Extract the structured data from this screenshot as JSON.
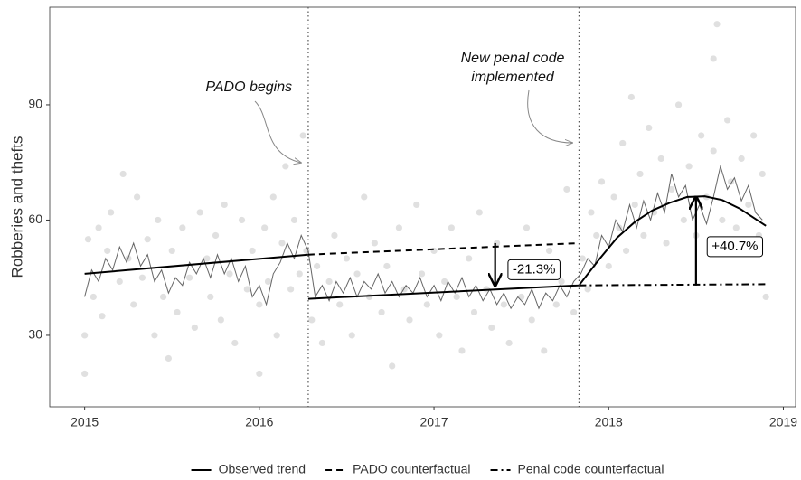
{
  "chart_data": {
    "type": "line",
    "ylabel": "Robberies and thefts",
    "xlim": [
      2014.8,
      2019.07
    ],
    "ylim": [
      11.4,
      115.4
    ],
    "xticks": [
      2015,
      2016,
      2017,
      2018,
      2019
    ],
    "yticks": [
      30,
      60,
      90
    ],
    "grid": false,
    "legend": "bottom",
    "vlines": [
      2016.28,
      2017.83
    ],
    "points": {
      "color": "#999999",
      "x": [
        2015.0,
        2015.0,
        2015.02,
        2015.05,
        2015.08,
        2015.1,
        2015.13,
        2015.15,
        2015.2,
        2015.22,
        2015.25,
        2015.28,
        2015.3,
        2015.33,
        2015.36,
        2015.4,
        2015.42,
        2015.45,
        2015.48,
        2015.5,
        2015.53,
        2015.56,
        2015.6,
        2015.63,
        2015.66,
        2015.7,
        2015.72,
        2015.75,
        2015.78,
        2015.8,
        2015.83,
        2015.86,
        2015.9,
        2015.93,
        2015.96,
        2016.0,
        2016.0,
        2016.03,
        2016.05,
        2016.08,
        2016.1,
        2016.13,
        2016.15,
        2016.18,
        2016.2,
        2016.23,
        2016.25,
        2016.27,
        2016.3,
        2016.33,
        2016.36,
        2016.4,
        2016.43,
        2016.46,
        2016.5,
        2016.53,
        2016.56,
        2016.6,
        2016.63,
        2016.66,
        2016.7,
        2016.73,
        2016.76,
        2016.8,
        2016.83,
        2016.86,
        2016.9,
        2016.93,
        2016.96,
        2017.0,
        2017.03,
        2017.06,
        2017.1,
        2017.13,
        2017.16,
        2017.2,
        2017.23,
        2017.26,
        2017.3,
        2017.33,
        2017.36,
        2017.4,
        2017.43,
        2017.46,
        2017.5,
        2017.53,
        2017.56,
        2017.6,
        2017.63,
        2017.66,
        2017.7,
        2017.73,
        2017.76,
        2017.8,
        2017.85,
        2017.88,
        2017.9,
        2017.93,
        2017.96,
        2018.0,
        2018.03,
        2018.06,
        2018.08,
        2018.1,
        2018.13,
        2018.15,
        2018.18,
        2018.2,
        2018.23,
        2018.26,
        2018.3,
        2018.33,
        2018.36,
        2018.4,
        2018.43,
        2018.46,
        2018.5,
        2018.53,
        2018.56,
        2018.6,
        2018.6,
        2018.62,
        2018.65,
        2018.68,
        2018.7,
        2018.73,
        2018.76,
        2018.8,
        2018.83,
        2018.86,
        2018.88,
        2018.9
      ],
      "values": [
        20,
        30,
        55,
        40,
        58,
        35,
        52,
        62,
        44,
        72,
        50,
        38,
        66,
        45,
        55,
        30,
        60,
        40,
        24,
        52,
        36,
        58,
        45,
        32,
        62,
        50,
        40,
        56,
        34,
        64,
        46,
        28,
        60,
        42,
        52,
        20,
        38,
        58,
        44,
        66,
        30,
        54,
        74,
        42,
        60,
        46,
        82,
        52,
        34,
        48,
        28,
        44,
        56,
        38,
        50,
        30,
        46,
        66,
        40,
        54,
        36,
        48,
        22,
        58,
        42,
        34,
        64,
        46,
        38,
        52,
        30,
        44,
        58,
        40,
        26,
        50,
        36,
        62,
        42,
        32,
        54,
        38,
        28,
        48,
        40,
        58,
        34,
        46,
        26,
        52,
        38,
        44,
        68,
        36,
        50,
        42,
        62,
        56,
        70,
        48,
        66,
        58,
        80,
        52,
        92,
        64,
        72,
        56,
        84,
        62,
        76,
        54,
        68,
        90,
        60,
        74,
        56,
        82,
        66,
        102,
        78,
        111,
        60,
        86,
        70,
        58,
        76,
        64,
        82,
        56,
        72,
        40
      ]
    },
    "smoothed": {
      "color": "#666666",
      "x": [
        2015.0,
        2015.04,
        2015.08,
        2015.12,
        2015.16,
        2015.2,
        2015.24,
        2015.28,
        2015.32,
        2015.36,
        2015.4,
        2015.44,
        2015.48,
        2015.52,
        2015.56,
        2015.6,
        2015.64,
        2015.68,
        2015.72,
        2015.76,
        2015.8,
        2015.84,
        2015.88,
        2015.92,
        2015.96,
        2016.0,
        2016.04,
        2016.08,
        2016.12,
        2016.16,
        2016.2,
        2016.24,
        2016.28,
        2016.32,
        2016.36,
        2016.4,
        2016.44,
        2016.48,
        2016.52,
        2016.56,
        2016.6,
        2016.64,
        2016.68,
        2016.72,
        2016.76,
        2016.8,
        2016.84,
        2016.88,
        2016.92,
        2016.96,
        2017.0,
        2017.04,
        2017.08,
        2017.12,
        2017.16,
        2017.2,
        2017.24,
        2017.28,
        2017.32,
        2017.36,
        2017.4,
        2017.44,
        2017.48,
        2017.52,
        2017.56,
        2017.6,
        2017.64,
        2017.68,
        2017.72,
        2017.76,
        2017.8,
        2017.84,
        2017.88,
        2017.92,
        2017.96,
        2018.0,
        2018.04,
        2018.08,
        2018.12,
        2018.16,
        2018.2,
        2018.24,
        2018.28,
        2018.32,
        2018.36,
        2018.4,
        2018.44,
        2018.48,
        2018.52,
        2018.56,
        2018.6,
        2018.64,
        2018.68,
        2018.72,
        2018.76,
        2018.8,
        2018.84,
        2018.88
      ],
      "values": [
        40,
        47,
        44,
        50,
        47,
        53,
        49,
        54,
        48,
        51,
        44,
        47,
        41,
        45,
        43,
        49,
        46,
        50,
        45,
        51,
        46,
        50,
        44,
        48,
        40,
        43,
        38,
        46,
        49,
        54,
        50,
        56,
        52,
        40,
        43,
        39,
        44,
        41,
        45,
        40,
        44,
        42,
        46,
        41,
        44,
        40,
        43,
        41,
        45,
        40,
        43,
        39,
        44,
        41,
        45,
        40,
        43,
        39,
        42,
        38,
        41,
        37,
        40,
        38,
        42,
        37,
        41,
        39,
        43,
        40,
        44,
        46,
        50,
        48,
        56,
        53,
        60,
        57,
        64,
        58,
        65,
        60,
        67,
        62,
        72,
        66,
        69,
        60,
        64,
        59,
        66,
        74,
        68,
        71,
        65,
        69,
        62,
        60
      ]
    },
    "series": [
      {
        "name": "Observed trend",
        "color": "#000000",
        "style": "solid",
        "x": [
          2015.0,
          2016.28,
          2016.28,
          2016.28,
          2017.83,
          2017.95,
          2018.05,
          2018.15,
          2018.25,
          2018.35,
          2018.45,
          2018.55,
          2018.65,
          2018.75,
          2018.85,
          2018.9
        ],
        "values": [
          46,
          51,
          null,
          39.5,
          43,
          50,
          55.5,
          59.5,
          62.5,
          64.5,
          66,
          66.2,
          65.2,
          63,
          60,
          58.5
        ]
      },
      {
        "name": "PADO counterfactual",
        "color": "#000000",
        "style": "dashed",
        "x": [
          2016.28,
          2017.83
        ],
        "values": [
          51,
          54
        ]
      },
      {
        "name": "Penal code counterfactual",
        "color": "#000000",
        "style": "dashdot",
        "x": [
          2017.83,
          2018.9
        ],
        "values": [
          43,
          43.3
        ]
      }
    ],
    "annotations": [
      {
        "text": "PADO begins",
        "x": 2015.94,
        "y": 94.5
      },
      {
        "text": "New penal code",
        "x": 2017.45,
        "y": 102
      },
      {
        "text": "implemented",
        "x": 2017.45,
        "y": 97.1
      }
    ],
    "effects": [
      {
        "label": "-21.3%",
        "x": 2017.35,
        "from": 54,
        "to": 43
      },
      {
        "label": "+40.7%",
        "x": 2018.5,
        "from": 43,
        "to": 66
      }
    ]
  }
}
